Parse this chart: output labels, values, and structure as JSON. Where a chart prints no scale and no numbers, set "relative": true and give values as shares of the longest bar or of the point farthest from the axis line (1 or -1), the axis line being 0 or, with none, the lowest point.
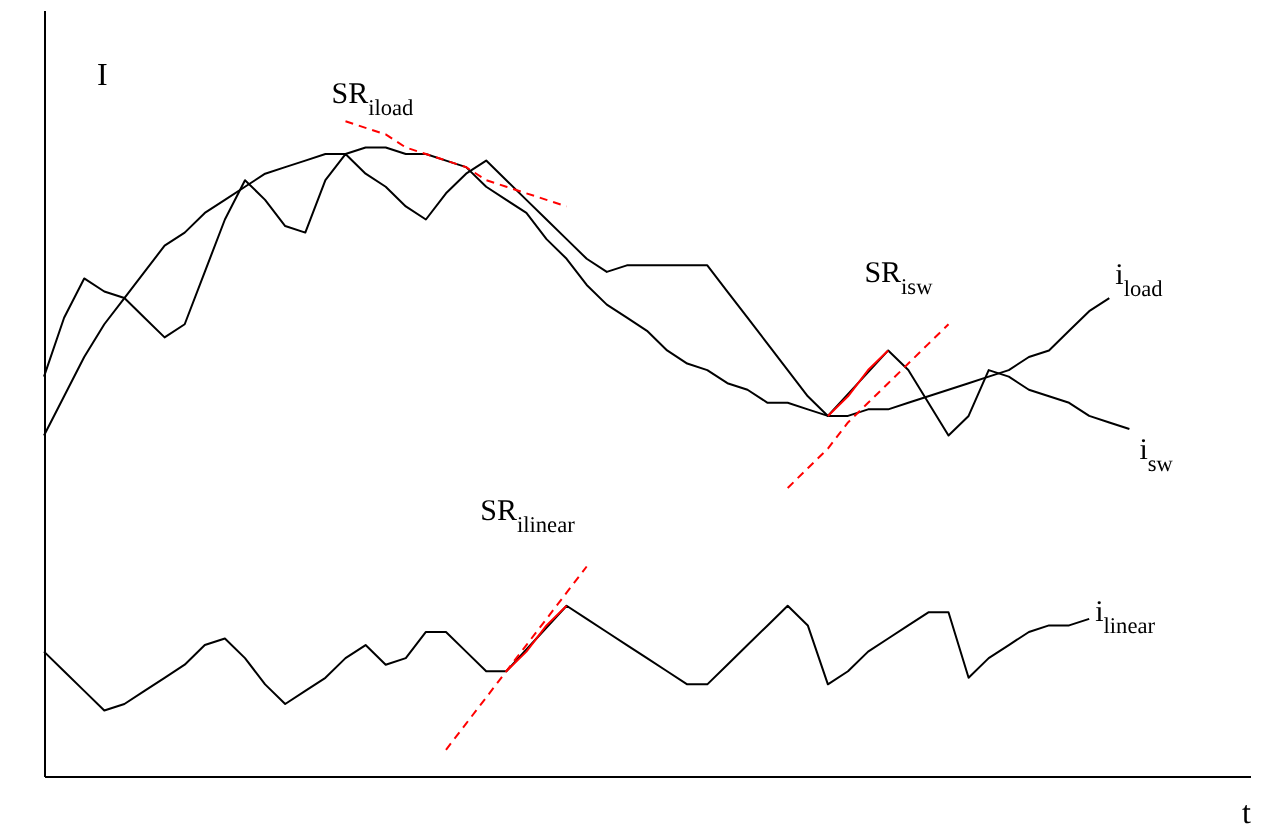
{
  "chart_data": {
    "type": "line",
    "relative": true,
    "xlabel": "t",
    "ylabel": "I",
    "categories": [
      null,
      null,
      null,
      null,
      null,
      null,
      null,
      null,
      null,
      null,
      null,
      null,
      null,
      null,
      null,
      null,
      null,
      null,
      null,
      null,
      null,
      null,
      null,
      null,
      null,
      null,
      null,
      null,
      null,
      null,
      null,
      null,
      null,
      null,
      null,
      null,
      null,
      null,
      null,
      null,
      null,
      null,
      null,
      null,
      null,
      null,
      null,
      null,
      null,
      null,
      null,
      null,
      null,
      null,
      null,
      null,
      null,
      null,
      null,
      null,
      null
    ],
    "series": [
      {
        "name": "i$_{load}$",
        "color": "#000000",
        "values": [
          0.52,
          0.58,
          0.64,
          0.69,
          0.73,
          0.77,
          0.81,
          0.83,
          0.86,
          0.88,
          0.9,
          0.92,
          0.93,
          0.94,
          0.95,
          0.95,
          0.96,
          0.96,
          0.95,
          0.95,
          0.94,
          0.93,
          0.9,
          0.88,
          0.86,
          0.82,
          0.79,
          0.75,
          0.72,
          0.7,
          0.68,
          0.65,
          0.63,
          0.62,
          0.6,
          0.59,
          0.57,
          0.57,
          0.56,
          0.55,
          0.55,
          0.56,
          0.56,
          0.57,
          0.58,
          0.59,
          0.6,
          0.61,
          0.62,
          0.64,
          0.65,
          0.68,
          0.71,
          0.73,
          null,
          null,
          null,
          null,
          null,
          null,
          null
        ]
      },
      {
        "name": "i$_{sw}$",
        "color": "#000000",
        "values": [
          0.61,
          0.7,
          0.76,
          0.74,
          0.73,
          0.7,
          0.67,
          0.69,
          0.77,
          0.85,
          0.91,
          0.88,
          0.84,
          0.83,
          0.91,
          0.95,
          0.92,
          0.9,
          0.87,
          0.85,
          0.89,
          0.92,
          0.94,
          0.91,
          0.88,
          0.85,
          0.82,
          0.79,
          0.77,
          0.78,
          0.78,
          0.78,
          0.78,
          0.78,
          0.74,
          0.7,
          0.66,
          0.62,
          0.58,
          0.55,
          null,
          null,
          0.65,
          0.62,
          0.57,
          0.52,
          0.55,
          0.62,
          0.61,
          0.59,
          0.58,
          0.57,
          0.55,
          0.54,
          0.53,
          null,
          null,
          null,
          null,
          null,
          null
        ]
      },
      {
        "name": "i$_{linear}$",
        "color": "#000000",
        "values": [
          0.19,
          0.16,
          0.13,
          0.1,
          0.11,
          0.13,
          0.15,
          0.17,
          0.2,
          0.21,
          0.18,
          0.14,
          0.11,
          0.13,
          0.15,
          0.18,
          0.2,
          0.17,
          0.18,
          0.22,
          0.22,
          0.19,
          0.16,
          0.16,
          null,
          null,
          0.26,
          0.24,
          0.22,
          0.2,
          0.18,
          0.16,
          0.14,
          0.14,
          0.17,
          0.2,
          0.23,
          0.26,
          0.23,
          0.14,
          0.16,
          0.19,
          0.21,
          0.23,
          0.25,
          0.25,
          0.15,
          0.18,
          0.2,
          0.22,
          0.23,
          0.23,
          0.24,
          null,
          null,
          null,
          null,
          null,
          null,
          null,
          null
        ]
      },
      {
        "name": "SR$_{iload}$",
        "color": "#ff0000",
        "line_style": "dashed",
        "values": [
          null,
          null,
          null,
          null,
          null,
          null,
          null,
          null,
          null,
          null,
          null,
          null,
          null,
          null,
          null,
          1.0,
          0.99,
          0.98,
          0.96,
          0.95,
          0.94,
          0.93,
          0.91,
          0.9,
          0.89,
          0.88,
          0.87,
          null,
          null,
          null,
          null,
          null,
          null,
          null,
          null,
          null,
          null,
          null,
          null,
          null,
          null,
          null,
          null,
          null,
          null,
          null,
          null,
          null,
          null,
          null,
          null,
          null,
          null,
          null,
          null,
          null,
          null,
          null,
          null,
          null,
          null
        ]
      },
      {
        "name": "SR$_{isw}$",
        "color": "#ff0000",
        "line_style": "dashed",
        "values": [
          null,
          null,
          null,
          null,
          null,
          null,
          null,
          null,
          null,
          null,
          null,
          null,
          null,
          null,
          null,
          null,
          null,
          null,
          null,
          null,
          null,
          null,
          null,
          null,
          null,
          null,
          null,
          null,
          null,
          null,
          null,
          null,
          null,
          null,
          null,
          null,
          null,
          0.44,
          0.47,
          0.5,
          0.54,
          0.57,
          0.6,
          0.63,
          0.66,
          0.69,
          null,
          null,
          null,
          null,
          null,
          null,
          null,
          null,
          null,
          null,
          null,
          null,
          null,
          null,
          null
        ]
      },
      {
        "name": "SR$_{ilinear}$",
        "color": "#ff0000",
        "line_style": "dashed",
        "values": [
          null,
          null,
          null,
          null,
          null,
          null,
          null,
          null,
          null,
          null,
          null,
          null,
          null,
          null,
          null,
          null,
          null,
          null,
          null,
          null,
          0.04,
          0.08,
          0.12,
          0.16,
          0.2,
          0.24,
          0.28,
          0.32,
          null,
          null,
          null,
          null,
          null,
          null,
          null,
          null,
          null,
          null,
          null,
          null,
          null,
          null,
          null,
          null,
          null,
          null,
          null,
          null,
          null,
          null,
          null,
          null,
          null,
          null,
          null,
          null,
          null,
          null,
          null,
          null,
          null
        ]
      },
      {
        "color": "#ff0000",
        "line_style": "solid",
        "values": [
          null,
          null,
          null,
          null,
          null,
          null,
          null,
          null,
          null,
          null,
          null,
          null,
          null,
          null,
          null,
          null,
          null,
          null,
          null,
          null,
          null,
          null,
          null,
          null,
          null,
          null,
          null,
          null,
          null,
          null,
          null,
          null,
          null,
          null,
          null,
          null,
          null,
          null,
          null,
          0.55,
          0.58,
          0.62,
          0.65,
          null,
          null,
          null,
          null,
          null,
          null,
          null,
          null,
          null,
          null,
          null,
          null,
          null,
          null,
          null,
          null,
          null,
          null
        ]
      },
      {
        "color": "#ff0000",
        "line_style": "solid",
        "values": [
          null,
          null,
          null,
          null,
          null,
          null,
          null,
          null,
          null,
          null,
          null,
          null,
          null,
          null,
          null,
          null,
          null,
          null,
          null,
          null,
          null,
          null,
          null,
          0.16,
          0.19,
          0.23,
          0.26,
          null,
          null,
          null,
          null,
          null,
          null,
          null,
          null,
          null,
          null,
          null,
          null,
          null,
          null,
          null,
          null,
          null,
          null,
          null,
          null,
          null,
          null,
          null,
          null,
          null,
          null,
          null,
          null,
          null,
          null,
          null,
          null,
          null,
          null
        ]
      }
    ]
  }
}
